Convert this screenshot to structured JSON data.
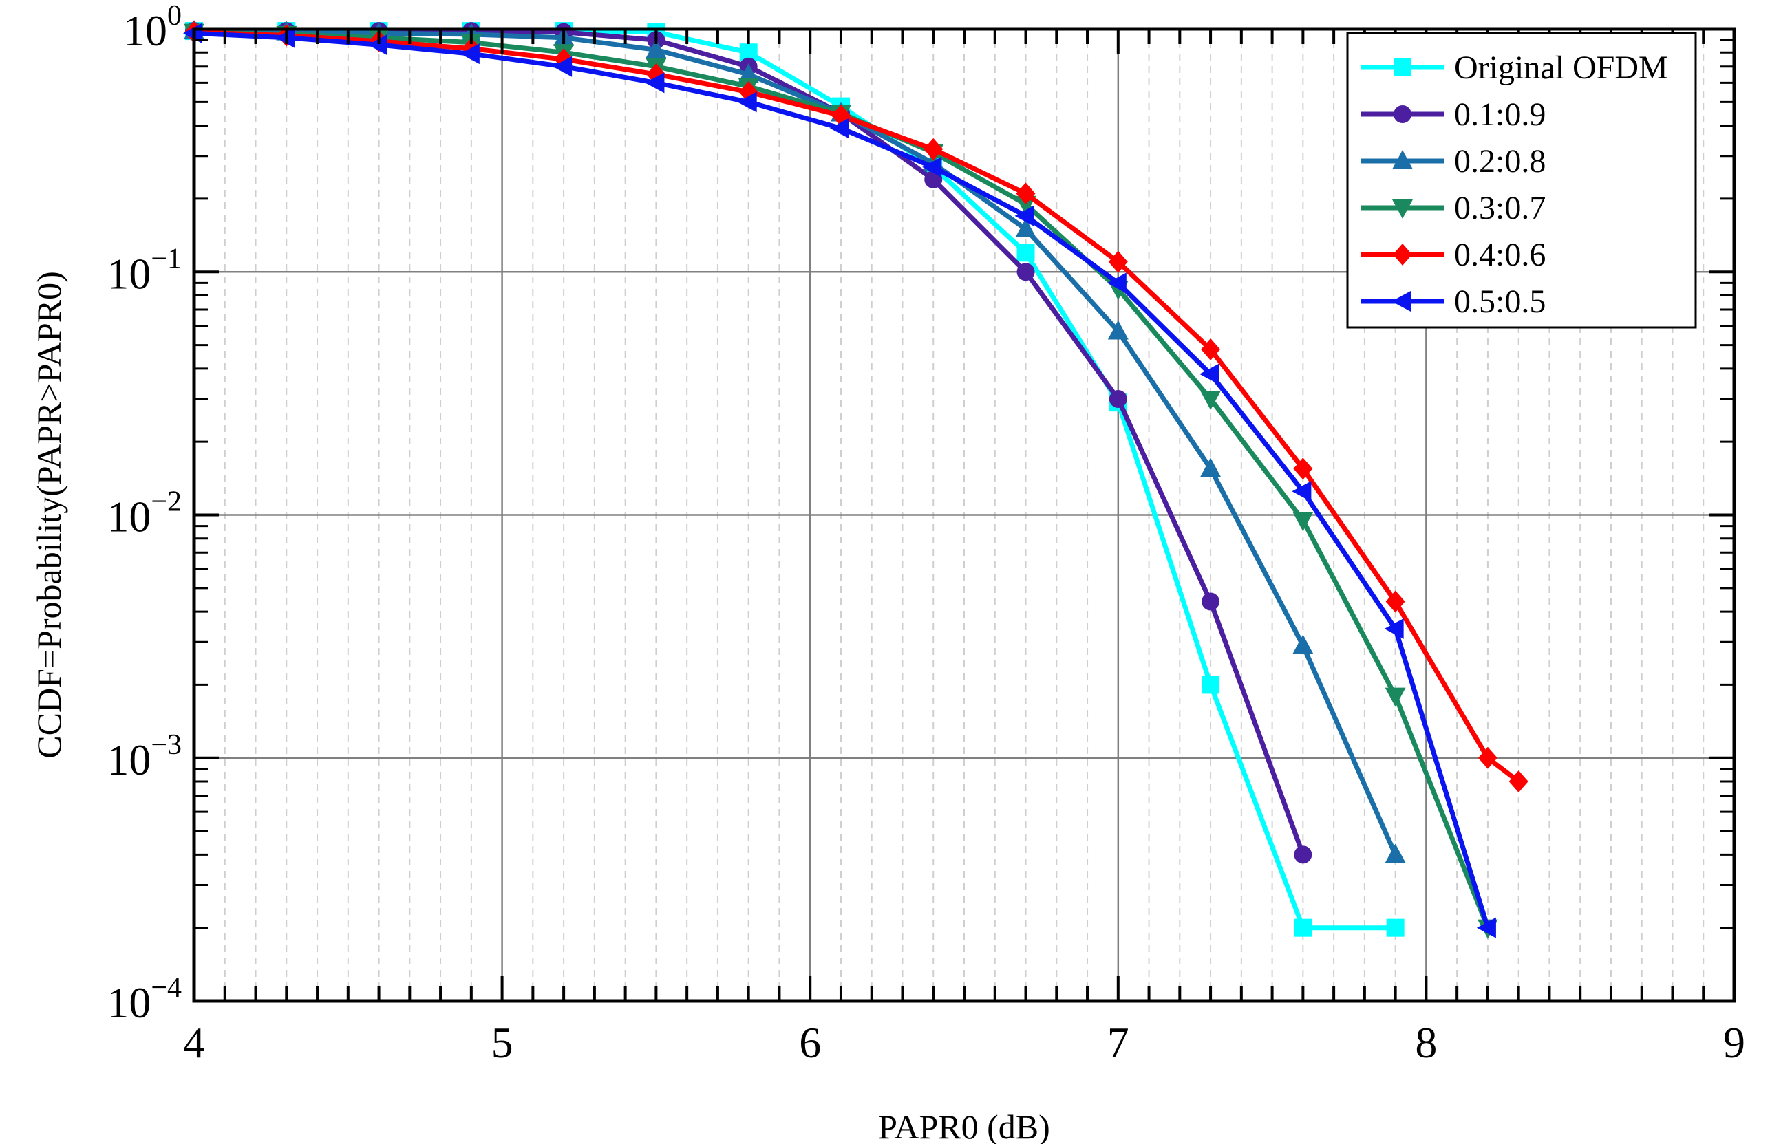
{
  "chart_data": {
    "type": "line",
    "title": "",
    "xlabel": "PAPR0 (dB)",
    "ylabel": "CCDF=Probability(PAPR>PAPR0)",
    "xlim": [
      4,
      9
    ],
    "ylim": [
      0.0001,
      1
    ],
    "yscale": "log",
    "grid": true,
    "legend_position": "top-right",
    "x_ticks": [
      "4",
      "5",
      "6",
      "7",
      "8",
      "9"
    ],
    "y_ticks": [
      {
        "base": "10",
        "exp": "0"
      },
      {
        "base": "10",
        "exp": "−1"
      },
      {
        "base": "10",
        "exp": "−2"
      },
      {
        "base": "10",
        "exp": "−3"
      },
      {
        "base": "10",
        "exp": "−4"
      }
    ],
    "series": [
      {
        "name": "Original OFDM",
        "color": "#00ffff",
        "marker": "square",
        "x": [
          4.0,
          4.3,
          4.6,
          4.9,
          5.2,
          5.5,
          5.8,
          6.1,
          6.4,
          6.7,
          7.0,
          7.3,
          7.6,
          7.9
        ],
        "y": [
          0.98,
          0.98,
          0.98,
          0.98,
          0.98,
          0.97,
          0.8,
          0.48,
          0.27,
          0.12,
          0.029,
          0.002,
          0.0002,
          0.0002
        ]
      },
      {
        "name": "0.1:0.9",
        "color": "#4b1fa0",
        "marker": "circle",
        "x": [
          4.0,
          4.3,
          4.6,
          4.9,
          5.2,
          5.5,
          5.8,
          6.1,
          6.4,
          6.7,
          7.0,
          7.3,
          7.6
        ],
        "y": [
          0.98,
          0.98,
          0.98,
          0.98,
          0.97,
          0.9,
          0.7,
          0.45,
          0.24,
          0.1,
          0.03,
          0.0044,
          0.0004
        ]
      },
      {
        "name": "0.2:0.8",
        "color": "#1a6fa8",
        "marker": "triangle-up",
        "x": [
          4.0,
          4.3,
          4.6,
          4.9,
          5.2,
          5.5,
          5.8,
          6.1,
          6.4,
          6.7,
          7.0,
          7.3,
          7.6,
          7.9
        ],
        "y": [
          0.98,
          0.97,
          0.96,
          0.95,
          0.92,
          0.82,
          0.65,
          0.45,
          0.28,
          0.15,
          0.057,
          0.0155,
          0.0029,
          0.0004
        ]
      },
      {
        "name": "0.3:0.7",
        "color": "#1a8a5e",
        "marker": "triangle-down",
        "x": [
          4.0,
          4.3,
          4.6,
          4.9,
          5.2,
          5.5,
          5.8,
          6.1,
          6.4,
          6.7,
          7.0,
          7.3,
          7.6,
          7.9,
          8.2
        ],
        "y": [
          0.97,
          0.95,
          0.92,
          0.88,
          0.8,
          0.7,
          0.58,
          0.45,
          0.31,
          0.19,
          0.085,
          0.03,
          0.0095,
          0.0018,
          0.0002
        ]
      },
      {
        "name": "0.4:0.6",
        "color": "#ff0000",
        "marker": "diamond",
        "x": [
          4.0,
          4.3,
          4.6,
          4.9,
          5.2,
          5.5,
          5.8,
          6.1,
          6.4,
          6.7,
          7.0,
          7.3,
          7.6,
          7.9,
          8.2,
          8.3
        ],
        "y": [
          0.97,
          0.94,
          0.89,
          0.83,
          0.75,
          0.65,
          0.55,
          0.44,
          0.32,
          0.21,
          0.11,
          0.048,
          0.0155,
          0.0044,
          0.001,
          0.0008
        ]
      },
      {
        "name": "0.5:0.5",
        "color": "#0a14f0",
        "marker": "triangle-left",
        "x": [
          4.0,
          4.3,
          4.6,
          4.9,
          5.2,
          5.5,
          5.8,
          6.1,
          6.4,
          6.7,
          7.0,
          7.3,
          7.6,
          7.9,
          8.2
        ],
        "y": [
          0.96,
          0.92,
          0.86,
          0.79,
          0.7,
          0.6,
          0.5,
          0.39,
          0.27,
          0.17,
          0.09,
          0.038,
          0.0125,
          0.0034,
          0.0002
        ]
      }
    ]
  }
}
